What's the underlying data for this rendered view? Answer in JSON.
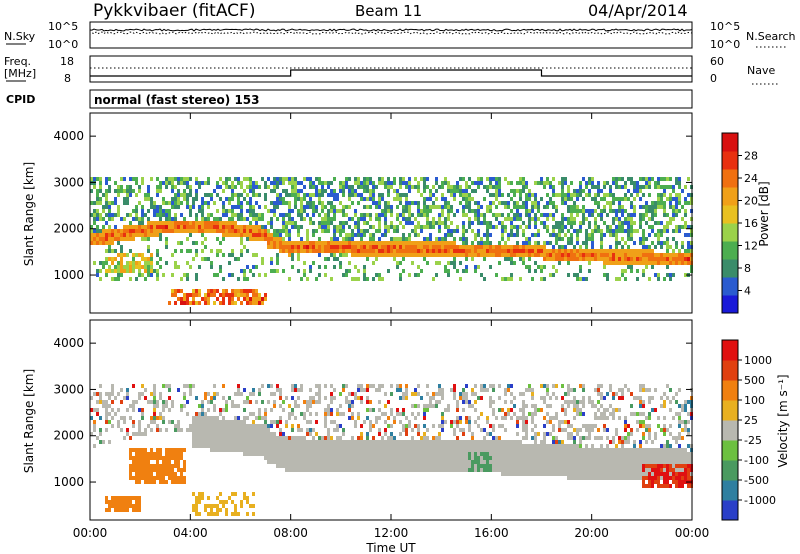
{
  "header": {
    "station": "Pykkvibaer (fitACF)",
    "beam": "Beam 11",
    "date": "04/Apr/2014"
  },
  "noise_panel": {
    "left_label": "N.Sky",
    "right_label": "N.Search",
    "left_ticks": [
      "10^5",
      "10^0"
    ],
    "right_ticks": [
      "10^5",
      "10^0"
    ]
  },
  "freq_panel": {
    "left_label_1": "Freq.",
    "left_label_2": "[MHz]",
    "right_label": "Nave",
    "left_ticks": [
      "18",
      "8"
    ],
    "right_ticks": [
      "60",
      "0"
    ]
  },
  "cpid_panel": {
    "label": "CPID",
    "text": "normal (fast stereo) 153"
  },
  "x_axis": {
    "title": "Time UT",
    "ticks": [
      "00:00",
      "04:00",
      "08:00",
      "12:00",
      "16:00",
      "20:00",
      "00:00"
    ]
  },
  "chart_data": [
    {
      "type": "heatmap",
      "variable": "Power",
      "ylabel": "Slant Range [km]",
      "xlabel": "Time UT",
      "xlim_hours": [
        0,
        24
      ],
      "ylim_km": [
        180,
        4500
      ],
      "yticks": [
        "1000",
        "2000",
        "3000",
        "4000"
      ],
      "colorbar": {
        "label": "Power [dB]",
        "ticks": [
          "28",
          "24",
          "20",
          "16",
          "12",
          "8",
          "4"
        ],
        "range": [
          0,
          32
        ],
        "colors": [
          "#1a1ad8",
          "#2a5bd0",
          "#3a8c6a",
          "#4cae50",
          "#9bd24a",
          "#e8c020",
          "#f0a018",
          "#f07010",
          "#e83010",
          "#d81010"
        ]
      }
    },
    {
      "type": "heatmap",
      "variable": "Velocity",
      "ylabel": "Slant Range [km]",
      "xlabel": "Time UT",
      "xlim_hours": [
        0,
        24
      ],
      "ylim_km": [
        180,
        4500
      ],
      "yticks": [
        "1000",
        "2000",
        "3000",
        "4000"
      ],
      "colorbar": {
        "label": "Velocity [m s⁻¹]",
        "ticks": [
          "1000",
          "500",
          "100",
          "25",
          "-25",
          "-100",
          "-500",
          "-1000"
        ],
        "colors": [
          "#2a3fc8",
          "#2f7fa0",
          "#4a9a60",
          "#6cc040",
          "#b8b8b0",
          "#e8b020",
          "#f08010",
          "#e04010",
          "#e01010"
        ]
      }
    }
  ]
}
